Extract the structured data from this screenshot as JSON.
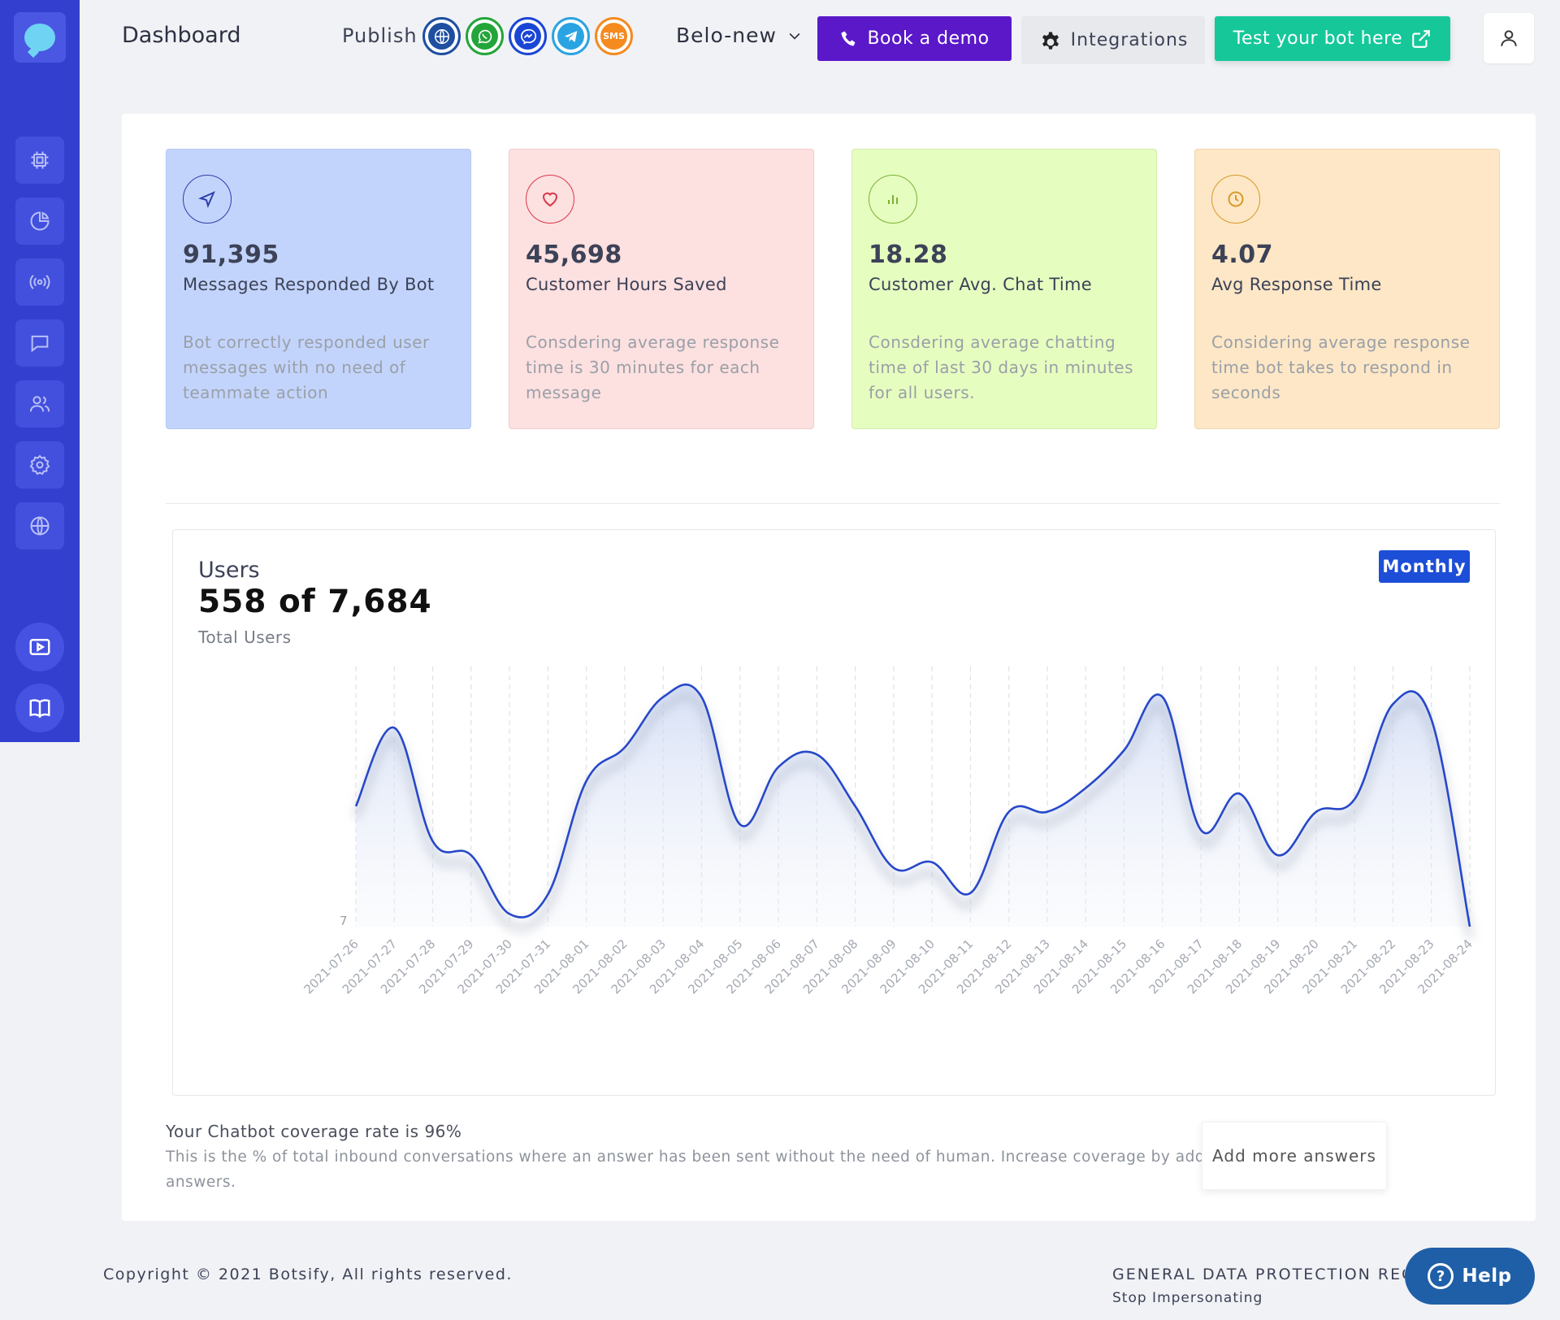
{
  "header": {
    "title": "Dashboard",
    "publish_label": "Publish",
    "publish_channels": [
      {
        "name": "web-icon",
        "color": "#1e4fa1"
      },
      {
        "name": "whatsapp-icon",
        "color": "#23a53a"
      },
      {
        "name": "messenger-icon",
        "color": "#1a46d6"
      },
      {
        "name": "telegram-icon",
        "color": "#2aa3e3"
      },
      {
        "name": "sms-icon",
        "color": "#f58a1f",
        "label": "SMS"
      }
    ],
    "bot_name": "Belo-new",
    "book_demo_label": "Book a demo",
    "integrations_label": "Integrations",
    "test_bot_label": "Test your bot here"
  },
  "cards": [
    {
      "value": "91,395",
      "label": "Messages Responded By Bot",
      "desc": "Bot correctly responded user messages with no need of teammate action",
      "icon": "send-icon",
      "accent": "#2d3fa8"
    },
    {
      "value": "45,698",
      "label": "Customer Hours Saved",
      "desc": "Consdering average response time is 30 minutes for each message",
      "icon": "heart-icon",
      "accent": "#d9384a"
    },
    {
      "value": "18.28",
      "label": "Customer Avg. Chat Time",
      "desc": "Consdering average chatting time of last 30 days in minutes for all users.",
      "icon": "bar-chart-icon",
      "accent": "#7ab232"
    },
    {
      "value": "4.07",
      "label": "Avg Response Time",
      "desc": "Considering average response time bot takes to respond in seconds",
      "icon": "clock-icon",
      "accent": "#d89a2b"
    }
  ],
  "users_chart": {
    "title": "Users",
    "big_value": "558 of 7,684",
    "subtitle": "Total Users",
    "period_button": "Monthly"
  },
  "chart_data": {
    "type": "area",
    "x": [
      "2021-07-26",
      "2021-07-27",
      "2021-07-28",
      "2021-07-29",
      "2021-07-30",
      "2021-07-31",
      "2021-08-01",
      "2021-08-02",
      "2021-08-03",
      "2021-08-04",
      "2021-08-05",
      "2021-08-06",
      "2021-08-07",
      "2021-08-08",
      "2021-08-09",
      "2021-08-10",
      "2021-08-11",
      "2021-08-12",
      "2021-08-13",
      "2021-08-14",
      "2021-08-15",
      "2021-08-16",
      "2021-08-17",
      "2021-08-18",
      "2021-08-19",
      "2021-08-20",
      "2021-08-21",
      "2021-08-22",
      "2021-08-23",
      "2021-08-24"
    ],
    "y": [
      8.6,
      14.2,
      6.1,
      5.1,
      0.9,
      2.3,
      10.4,
      12.8,
      16.4,
      16.4,
      7.3,
      11.4,
      12.3,
      8.6,
      4.2,
      4.6,
      2.4,
      8.2,
      8.2,
      9.9,
      12.6,
      16.4,
      6.9,
      9.5,
      5.1,
      8.2,
      9.1,
      15.9,
      14.8,
      0.0
    ],
    "ylabel": "",
    "y_tick_labels": [
      "7"
    ],
    "ylim": [
      0,
      18
    ],
    "grid": "vertical dashed",
    "color": "#2748c9"
  },
  "coverage": {
    "title": "Your Chatbot coverage rate is 96%",
    "desc": "This is the % of total inbound conversations where an answer has been sent without the need of human. Increase coverage by adding more answers.",
    "button": "Add more answers"
  },
  "footer": {
    "copyright": "Copyright © 2021 Botsify, All rights reserved.",
    "gdpr": "GENERAL DATA PROTECTION REGULATION",
    "stop": "Stop Impersonating",
    "help": "Help"
  },
  "colors": {
    "sidebar": "#3340cf",
    "demo_button": "#5a18c9",
    "test_button": "#16c79a",
    "monthly_button": "#1d4ed8",
    "help_button": "#1f5fa8"
  }
}
